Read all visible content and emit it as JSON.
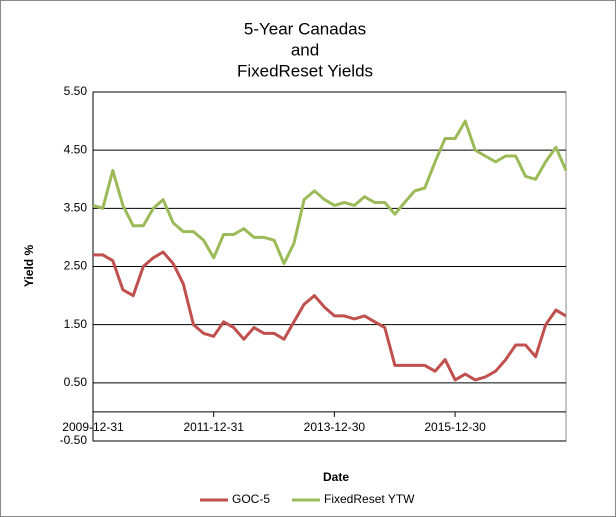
{
  "chart_data": {
    "type": "line",
    "title": [
      "5-Year Canadas",
      "and",
      "FixedReset Yields"
    ],
    "x_label": "Date",
    "y_label": "Yield %",
    "x": [
      "2009-12-31",
      "2010-02-28",
      "2010-04-30",
      "2010-06-30",
      "2010-08-31",
      "2010-10-31",
      "2010-12-31",
      "2011-02-28",
      "2011-04-30",
      "2011-06-30",
      "2011-08-31",
      "2011-10-31",
      "2011-12-31",
      "2012-02-29",
      "2012-04-30",
      "2012-06-30",
      "2012-08-31",
      "2012-10-31",
      "2012-12-31",
      "2013-02-28",
      "2013-04-30",
      "2013-06-30",
      "2013-08-31",
      "2013-10-31",
      "2013-12-31",
      "2014-02-28",
      "2014-04-30",
      "2014-06-30",
      "2014-08-31",
      "2014-10-31",
      "2014-12-31",
      "2015-02-28",
      "2015-04-30",
      "2015-06-30",
      "2015-08-31",
      "2015-10-31",
      "2015-12-31",
      "2016-02-29",
      "2016-04-30",
      "2016-06-30",
      "2016-08-31",
      "2016-10-31",
      "2016-12-31",
      "2017-02-28",
      "2017-04-30",
      "2017-06-30",
      "2017-08-31",
      "2017-10-31"
    ],
    "series": [
      {
        "name": "GOC-5",
        "color": "#c0504d",
        "values": [
          2.7,
          2.7,
          2.6,
          2.1,
          2.0,
          2.5,
          2.65,
          2.75,
          2.55,
          2.2,
          1.5,
          1.35,
          1.3,
          1.55,
          1.45,
          1.25,
          1.45,
          1.35,
          1.35,
          1.25,
          1.55,
          1.85,
          2.0,
          1.8,
          1.65,
          1.65,
          1.6,
          1.65,
          1.55,
          1.45,
          0.8,
          0.8,
          0.8,
          0.8,
          0.7,
          0.9,
          0.55,
          0.65,
          0.55,
          0.6,
          0.7,
          0.9,
          1.15,
          1.15,
          0.95,
          1.5,
          1.75,
          1.65
        ]
      },
      {
        "name": "FixedReset YTW",
        "color": "#9bbb59",
        "values": [
          3.55,
          3.5,
          4.15,
          3.55,
          3.2,
          3.2,
          3.5,
          3.65,
          3.25,
          3.1,
          3.1,
          2.95,
          2.65,
          3.05,
          3.05,
          3.15,
          3.0,
          3.0,
          2.95,
          2.55,
          2.9,
          3.65,
          3.8,
          3.65,
          3.55,
          3.6,
          3.55,
          3.7,
          3.6,
          3.6,
          3.4,
          3.6,
          3.8,
          3.85,
          4.3,
          4.7,
          4.7,
          5.0,
          4.5,
          4.4,
          4.3,
          4.4,
          4.4,
          4.05,
          4.0,
          4.3,
          4.55,
          4.15
        ]
      }
    ],
    "xlim": [
      "2009-12-31",
      "2017-10-31"
    ],
    "xticks": [
      "2009-12-31",
      "2011-12-31",
      "2013-12-30",
      "2015-12-30"
    ],
    "ylim": [
      -0.5,
      5.5
    ],
    "yticks": [
      {
        "value": -0.5,
        "label": "-0.50"
      },
      {
        "value": 0.5,
        "label": "0.50"
      },
      {
        "value": 1.5,
        "label": "1.50"
      },
      {
        "value": 2.5,
        "label": "2.50"
      },
      {
        "value": 3.5,
        "label": "3.50"
      },
      {
        "value": 4.5,
        "label": "4.50"
      },
      {
        "value": 5.5,
        "label": "5.50"
      }
    ],
    "grid": true,
    "legend": "bottom"
  }
}
